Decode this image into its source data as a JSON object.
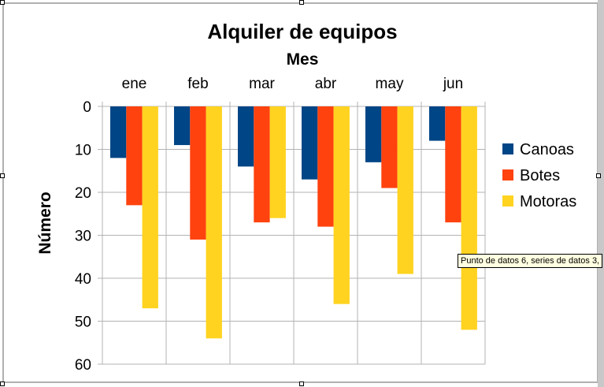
{
  "chart_data": {
    "type": "bar",
    "title": "Alquiler de equipos",
    "xlabel": "Mes",
    "ylabel": "Número",
    "categories": [
      "ene",
      "feb",
      "mar",
      "abr",
      "may",
      "jun"
    ],
    "series": [
      {
        "name": "Canoas",
        "color": "#004586",
        "values": [
          12,
          9,
          14,
          17,
          13,
          8
        ]
      },
      {
        "name": "Botes",
        "color": "#ff420e",
        "values": [
          23,
          31,
          27,
          28,
          19,
          27
        ]
      },
      {
        "name": "Motoras",
        "color": "#ffd320",
        "values": [
          47,
          54,
          26,
          46,
          39,
          52
        ]
      }
    ],
    "ylim": [
      0,
      60
    ],
    "y_inverted": true,
    "x_axis_position": "top",
    "yticks": [
      0,
      10,
      20,
      30,
      40,
      50,
      60
    ],
    "grid": true,
    "legend_position": "right"
  },
  "tooltip": "Punto de datos 6, series de datos 3,"
}
